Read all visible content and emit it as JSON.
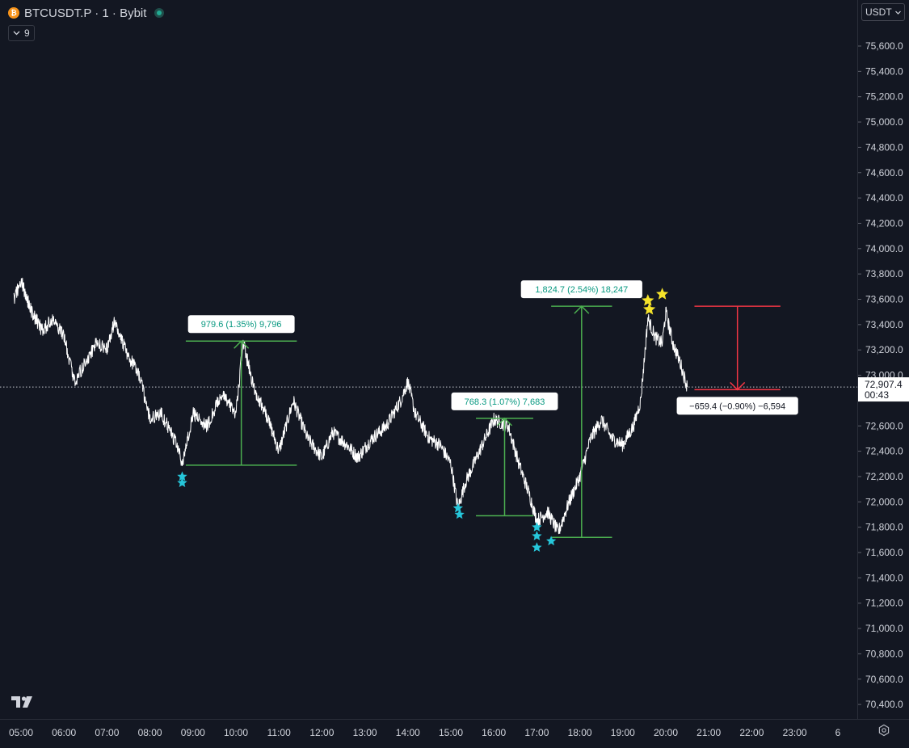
{
  "header": {
    "symbol_line": "BTCUSDT.P · 1 · Bybit",
    "coin_glyph": "₿",
    "indicators_count": "9",
    "indicator_icon": "chevron-down-icon"
  },
  "currency": {
    "selected": "USDT"
  },
  "price_axis": {
    "ticks": [
      "75,600.0",
      "75,400.0",
      "75,200.0",
      "75,000.0",
      "74,800.0",
      "74,600.0",
      "74,400.0",
      "74,200.0",
      "74,000.0",
      "73,800.0",
      "73,600.0",
      "73,400.0",
      "73,200.0",
      "73,000.0",
      "72,600.0",
      "72,400.0",
      "72,200.0",
      "72,000.0",
      "71,800.0",
      "71,600.0",
      "71,400.0",
      "71,200.0",
      "71,000.0",
      "70,800.0",
      "70,600.0",
      "70,400.0"
    ],
    "current_price": "72,907.4",
    "countdown": "00:43"
  },
  "time_axis": {
    "ticks": [
      "05:00",
      "06:00",
      "07:00",
      "08:00",
      "09:00",
      "10:00",
      "11:00",
      "12:00",
      "13:00",
      "14:00",
      "15:00",
      "16:00",
      "17:00",
      "18:00",
      "19:00",
      "20:00",
      "21:00",
      "22:00",
      "23:00",
      "6"
    ]
  },
  "colors": {
    "background": "#131722",
    "price_line": "#ffffff",
    "range_up": "#4caf50",
    "range_down": "#f23645",
    "up_text": "#089981",
    "star_low": "#26c6da",
    "star_high": "#f5e32a"
  },
  "chart_data": {
    "type": "line",
    "title": "BTCUSDT.P · 1 · Bybit",
    "xlabel": "",
    "ylabel": "",
    "x_ticks": [
      "05:00",
      "06:00",
      "07:00",
      "08:00",
      "09:00",
      "10:00",
      "11:00",
      "12:00",
      "13:00",
      "14:00",
      "15:00",
      "16:00",
      "17:00",
      "18:00",
      "19:00",
      "20:00",
      "21:00",
      "22:00",
      "23:00"
    ],
    "ylim": [
      70300,
      75800
    ],
    "grid": false,
    "series": [
      {
        "values": [
          {
            "t": "04:50",
            "p": 73600
          },
          {
            "t": "05:00",
            "p": 73750
          },
          {
            "t": "05:15",
            "p": 73500
          },
          {
            "t": "05:30",
            "p": 73350
          },
          {
            "t": "05:45",
            "p": 73450
          },
          {
            "t": "06:00",
            "p": 73300
          },
          {
            "t": "06:15",
            "p": 72950
          },
          {
            "t": "06:30",
            "p": 73100
          },
          {
            "t": "06:45",
            "p": 73250
          },
          {
            "t": "07:00",
            "p": 73200
          },
          {
            "t": "07:10",
            "p": 73420
          },
          {
            "t": "07:30",
            "p": 73150
          },
          {
            "t": "07:45",
            "p": 73000
          },
          {
            "t": "08:00",
            "p": 72650
          },
          {
            "t": "08:15",
            "p": 72700
          },
          {
            "t": "08:30",
            "p": 72550
          },
          {
            "t": "08:40",
            "p": 72400
          },
          {
            "t": "08:45",
            "p": 72290
          },
          {
            "t": "09:00",
            "p": 72700
          },
          {
            "t": "09:20",
            "p": 72600
          },
          {
            "t": "09:40",
            "p": 72850
          },
          {
            "t": "10:00",
            "p": 72700
          },
          {
            "t": "10:10",
            "p": 73260
          },
          {
            "t": "10:25",
            "p": 72900
          },
          {
            "t": "10:45",
            "p": 72650
          },
          {
            "t": "11:00",
            "p": 72400
          },
          {
            "t": "11:20",
            "p": 72800
          },
          {
            "t": "11:40",
            "p": 72500
          },
          {
            "t": "12:00",
            "p": 72350
          },
          {
            "t": "12:15",
            "p": 72550
          },
          {
            "t": "12:35",
            "p": 72450
          },
          {
            "t": "12:50",
            "p": 72350
          },
          {
            "t": "13:10",
            "p": 72500
          },
          {
            "t": "13:30",
            "p": 72600
          },
          {
            "t": "13:50",
            "p": 72800
          },
          {
            "t": "14:00",
            "p": 72950
          },
          {
            "t": "14:10",
            "p": 72700
          },
          {
            "t": "14:30",
            "p": 72500
          },
          {
            "t": "14:45",
            "p": 72450
          },
          {
            "t": "15:00",
            "p": 72300
          },
          {
            "t": "15:10",
            "p": 71950
          },
          {
            "t": "15:20",
            "p": 72150
          },
          {
            "t": "15:40",
            "p": 72400
          },
          {
            "t": "16:00",
            "p": 72650
          },
          {
            "t": "16:20",
            "p": 72600
          },
          {
            "t": "16:35",
            "p": 72300
          },
          {
            "t": "16:50",
            "p": 72050
          },
          {
            "t": "17:00",
            "p": 71850
          },
          {
            "t": "17:15",
            "p": 71920
          },
          {
            "t": "17:30",
            "p": 71760
          },
          {
            "t": "17:45",
            "p": 72000
          },
          {
            "t": "18:00",
            "p": 72200
          },
          {
            "t": "18:15",
            "p": 72500
          },
          {
            "t": "18:30",
            "p": 72650
          },
          {
            "t": "18:45",
            "p": 72500
          },
          {
            "t": "19:00",
            "p": 72450
          },
          {
            "t": "19:15",
            "p": 72600
          },
          {
            "t": "19:25",
            "p": 72800
          },
          {
            "t": "19:35",
            "p": 73450
          },
          {
            "t": "19:45",
            "p": 73300
          },
          {
            "t": "19:55",
            "p": 73250
          },
          {
            "t": "20:00",
            "p": 73500
          },
          {
            "t": "20:10",
            "p": 73250
          },
          {
            "t": "20:20",
            "p": 73100
          },
          {
            "t": "20:30",
            "p": 72907
          }
        ]
      }
    ],
    "current_price_line": 72907.4,
    "measurements": [
      {
        "label": "979.6 (1.35%) 9,796",
        "direction": "up",
        "from_time": "08:50",
        "to_time": "11:25",
        "low": 72290,
        "high": 73270
      },
      {
        "label": "768.3 (1.07%) 7,683",
        "direction": "up",
        "from_time": "15:35",
        "to_time": "16:55",
        "low": 71890,
        "high": 72660
      },
      {
        "label": "1,824.7 (2.54%) 18,247",
        "direction": "up",
        "from_time": "17:20",
        "to_time": "18:45",
        "low": 71720,
        "high": 73545
      },
      {
        "label": "−659.4 (−0.90%) −6,594",
        "direction": "down",
        "from_time": "20:40",
        "to_time": "22:40",
        "high": 73545,
        "low": 72886
      }
    ],
    "markers": [
      {
        "type": "star",
        "color": "cyan",
        "t": "08:45",
        "p": 72200
      },
      {
        "type": "star",
        "color": "cyan",
        "t": "08:45",
        "p": 72150
      },
      {
        "type": "star",
        "color": "cyan",
        "t": "15:10",
        "p": 71950
      },
      {
        "type": "star",
        "color": "cyan",
        "t": "15:12",
        "p": 71900
      },
      {
        "type": "star",
        "color": "cyan",
        "t": "17:00",
        "p": 71800
      },
      {
        "type": "star",
        "color": "cyan",
        "t": "17:00",
        "p": 71730
      },
      {
        "type": "star",
        "color": "cyan",
        "t": "17:00",
        "p": 71640
      },
      {
        "type": "star",
        "color": "cyan",
        "t": "17:20",
        "p": 71690
      },
      {
        "type": "star",
        "color": "yellow",
        "t": "19:35",
        "p": 73590
      },
      {
        "type": "star",
        "color": "yellow",
        "t": "19:37",
        "p": 73520
      },
      {
        "type": "star",
        "color": "yellow",
        "t": "19:55",
        "p": 73640
      }
    ]
  }
}
